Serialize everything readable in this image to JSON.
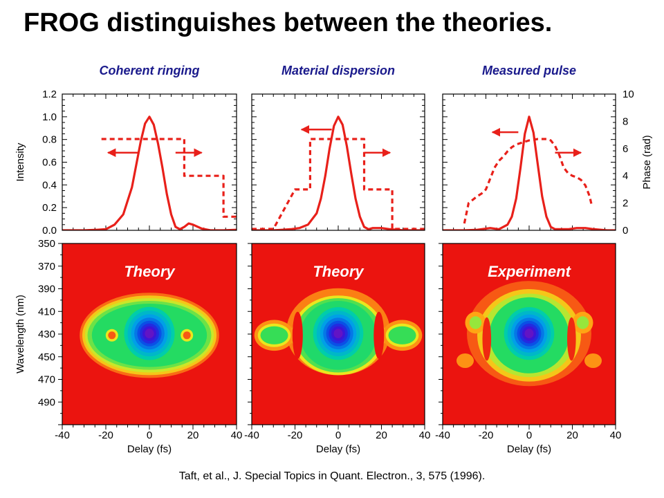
{
  "slide": {
    "title": "FROG distinguishes between the theories.",
    "citation": "Taft, et al., J. Special Topics in Quant. Electron., 3, 575 (1996)."
  },
  "chart_data": [
    {
      "type": "line",
      "title": "Coherent ringing",
      "ylabel": "Intensity",
      "y2label": "Phase (rad)",
      "xlim": [
        -40,
        40
      ],
      "ylim": [
        0,
        1.2
      ],
      "y2lim": [
        0,
        10
      ],
      "yticks": [
        "0.0",
        "0.2",
        "0.4",
        "0.6",
        "0.8",
        "1.0",
        "1.2"
      ],
      "series": [
        {
          "axis": "left",
          "style": "solid",
          "color": "#e8201a",
          "x": [
            -40,
            -30,
            -24,
            -20,
            -16,
            -12,
            -8,
            -6,
            -4,
            -2,
            0,
            2,
            4,
            6,
            8,
            10,
            12,
            14,
            16,
            18,
            20,
            24,
            28,
            34,
            40
          ],
          "y": [
            0.0,
            0.0,
            0.005,
            0.01,
            0.05,
            0.14,
            0.38,
            0.58,
            0.78,
            0.94,
            1.0,
            0.93,
            0.76,
            0.55,
            0.32,
            0.14,
            0.03,
            0.01,
            0.03,
            0.06,
            0.05,
            0.015,
            0.0,
            0.0,
            0.005
          ]
        },
        {
          "axis": "right",
          "style": "dashed",
          "color": "#e8201a",
          "x": [
            -22,
            6,
            6,
            16,
            16,
            28,
            28,
            34,
            34,
            40
          ],
          "y": [
            6.7,
            6.7,
            6.7,
            6.7,
            4.0,
            4.0,
            4.0,
            4.0,
            1.0,
            1.0
          ]
        }
      ],
      "arrows": [
        {
          "from": -5,
          "to": -19,
          "phase": 5.7
        },
        {
          "from": 12,
          "to": 24,
          "phase": 5.7
        }
      ]
    },
    {
      "type": "line",
      "title": "Material dispersion",
      "xlim": [
        -40,
        40
      ],
      "ylim": [
        0,
        1.2
      ],
      "y2lim": [
        0,
        10
      ],
      "series": [
        {
          "axis": "left",
          "style": "solid",
          "color": "#e8201a",
          "x": [
            -40,
            -30,
            -26,
            -22,
            -18,
            -14,
            -10,
            -8,
            -6,
            -4,
            -2,
            0,
            2,
            4,
            6,
            8,
            10,
            12,
            14,
            16,
            20,
            24,
            30,
            36,
            40
          ],
          "y": [
            0.0,
            0.0,
            0.005,
            0.01,
            0.02,
            0.05,
            0.15,
            0.28,
            0.48,
            0.72,
            0.92,
            1.0,
            0.93,
            0.74,
            0.5,
            0.28,
            0.12,
            0.03,
            0.01,
            0.02,
            0.02,
            0.01,
            0.0,
            0.0,
            0.0
          ]
        },
        {
          "axis": "right",
          "style": "dashed",
          "color": "#e8201a",
          "x": [
            -40,
            -30,
            -30,
            -20,
            -20,
            -13,
            -13,
            6,
            6,
            12,
            12,
            25,
            25,
            34,
            34,
            40
          ],
          "y": [
            0.1,
            0.1,
            0.1,
            3.0,
            3.0,
            3.0,
            6.7,
            6.7,
            6.7,
            6.7,
            3.0,
            3.0,
            0.1,
            0.1,
            0.1,
            0.1
          ]
        }
      ],
      "arrows": [
        {
          "from": -3,
          "to": -17,
          "phase": 7.4
        },
        {
          "from": 12,
          "to": 24,
          "phase": 5.7
        }
      ]
    },
    {
      "type": "line",
      "title": "Measured pulse",
      "y2label": "Phase (rad)",
      "xlim": [
        -40,
        40
      ],
      "ylim": [
        0,
        1.2
      ],
      "y2lim": [
        0,
        10
      ],
      "y2ticks": [
        "0",
        "2",
        "4",
        "6",
        "8",
        "10"
      ],
      "series": [
        {
          "axis": "left",
          "style": "solid",
          "color": "#e8201a",
          "x": [
            -40,
            -30,
            -24,
            -18,
            -14,
            -10,
            -8,
            -6,
            -4,
            -2,
            0,
            2,
            4,
            6,
            8,
            10,
            12,
            14,
            18,
            22,
            26,
            30,
            36,
            40
          ],
          "y": [
            0.0,
            0.0,
            0.005,
            0.02,
            0.01,
            0.05,
            0.12,
            0.28,
            0.55,
            0.85,
            1.0,
            0.86,
            0.58,
            0.3,
            0.12,
            0.03,
            0.01,
            0.01,
            0.01,
            0.02,
            0.02,
            0.01,
            0.0,
            0.0
          ]
        },
        {
          "axis": "right",
          "style": "dashed",
          "color": "#e8201a",
          "x": [
            -30,
            -28,
            -24,
            -22,
            -20,
            -18,
            -16,
            -14,
            -12,
            -10,
            -8,
            -6,
            -4,
            0,
            4,
            8,
            10,
            12,
            14,
            16,
            18,
            20,
            22,
            24,
            26,
            28,
            29
          ],
          "y": [
            0.5,
            2.0,
            2.5,
            2.7,
            3.0,
            3.8,
            4.6,
            5.1,
            5.4,
            5.8,
            6.1,
            6.3,
            6.4,
            6.6,
            6.7,
            6.7,
            6.6,
            6.2,
            5.5,
            4.6,
            4.2,
            4.0,
            3.9,
            3.7,
            3.3,
            2.5,
            1.8
          ]
        }
      ],
      "arrows": [
        {
          "from": -5,
          "to": -17,
          "phase": 7.2
        },
        {
          "from": 12,
          "to": 24,
          "phase": 5.7
        }
      ]
    },
    {
      "type": "heatmap",
      "label": "Theory",
      "xlabel": "Delay (fs)",
      "ylabel": "Wavelength (nm)",
      "xlim": [
        -40,
        40
      ],
      "ylim": [
        350,
        510
      ],
      "xticks": [
        "-40",
        "-20",
        "0",
        "20",
        "40"
      ],
      "yticks": [
        "350",
        "370",
        "390",
        "410",
        "430",
        "450",
        "470",
        "490"
      ],
      "variant": "coherent"
    },
    {
      "type": "heatmap",
      "label": "Theory",
      "xlabel": "Delay (fs)",
      "xlim": [
        -40,
        40
      ],
      "ylim": [
        350,
        510
      ],
      "xticks": [
        "-40",
        "-20",
        "0",
        "20",
        "40"
      ],
      "variant": "dispersion"
    },
    {
      "type": "heatmap",
      "label": "Experiment",
      "xlabel": "Delay (fs)",
      "xlim": [
        -40,
        40
      ],
      "ylim": [
        350,
        510
      ],
      "xticks": [
        "-40",
        "-20",
        "0",
        "20",
        "40"
      ],
      "variant": "experiment"
    }
  ]
}
